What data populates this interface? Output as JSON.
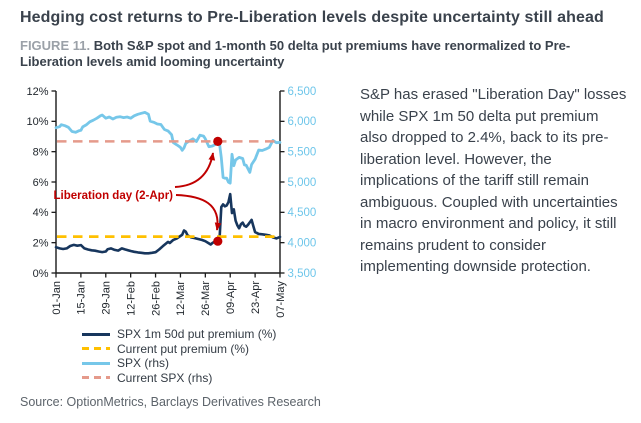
{
  "page": {
    "title": "Hedging cost returns to Pre-Liberation levels despite uncertainty still ahead",
    "figure_label": "FIGURE 11.",
    "figure_caption": "Both S&P spot and 1-month 50 delta put premiums have renormalized to Pre-Liberation levels amid looming uncertainty",
    "commentary": "S&P has erased \"Liberation Day\" losses while SPX 1m 50 delta put premium also dropped to 2.4%, back to its pre-liberation level. However, the implications of the tariff still remain ambiguous. Coupled with uncertainties in macro environment and policy, it still remains prudent to consider implementing downside protection.",
    "source": "Source: OptionMetrics, Barclays Derivatives Research"
  },
  "chart_data": {
    "type": "line",
    "title": "",
    "axis_color": "#1a1a1a",
    "tick_label_color": "#22282e",
    "x_axis": {
      "range_days": [
        0,
        126
      ],
      "tick_days": [
        0,
        14,
        28,
        42,
        56,
        70,
        84,
        98,
        112,
        126
      ],
      "tick_labels": [
        "01-Jan",
        "15-Jan",
        "29-Jan",
        "12-Feb",
        "26-Feb",
        "12-Mar",
        "26-Mar",
        "09-Apr",
        "23-Apr",
        "07-May"
      ]
    },
    "y_left": {
      "range": [
        0,
        12
      ],
      "tick_labels": [
        "0%",
        "2%",
        "4%",
        "6%",
        "8%",
        "10%",
        "12%"
      ]
    },
    "y_right": {
      "range": [
        3500,
        6500
      ],
      "tick_labels": [
        "3,500",
        "4,000",
        "4,500",
        "5,000",
        "5,500",
        "6,000",
        "6,500"
      ],
      "color": "#6ec6ea"
    },
    "series": [
      {
        "key": "premium",
        "name": "SPX 1m 50d put premium (%)",
        "axis": "left",
        "style": "solid",
        "color": "#17365d",
        "points": [
          [
            0,
            1.7
          ],
          [
            2,
            1.62
          ],
          [
            4,
            1.58
          ],
          [
            6,
            1.62
          ],
          [
            8,
            1.78
          ],
          [
            10,
            1.85
          ],
          [
            12,
            1.8
          ],
          [
            14,
            1.84
          ],
          [
            16,
            1.62
          ],
          [
            18,
            1.55
          ],
          [
            20,
            1.5
          ],
          [
            22,
            1.47
          ],
          [
            24,
            1.42
          ],
          [
            26,
            1.38
          ],
          [
            28,
            1.42
          ],
          [
            29,
            1.56
          ],
          [
            31,
            1.62
          ],
          [
            33,
            1.52
          ],
          [
            35,
            1.48
          ],
          [
            37,
            1.62
          ],
          [
            39,
            1.55
          ],
          [
            42,
            1.45
          ],
          [
            44,
            1.4
          ],
          [
            46,
            1.36
          ],
          [
            48,
            1.33
          ],
          [
            50,
            1.3
          ],
          [
            52,
            1.3
          ],
          [
            54,
            1.33
          ],
          [
            56,
            1.37
          ],
          [
            58,
            1.55
          ],
          [
            60,
            1.76
          ],
          [
            62,
            1.95
          ],
          [
            63,
            2.05
          ],
          [
            64,
            1.98
          ],
          [
            66,
            2.18
          ],
          [
            68,
            2.28
          ],
          [
            70,
            2.44
          ],
          [
            71,
            2.52
          ],
          [
            72,
            2.8
          ],
          [
            73,
            2.72
          ],
          [
            74,
            2.48
          ],
          [
            76,
            2.35
          ],
          [
            78,
            2.3
          ],
          [
            80,
            2.24
          ],
          [
            82,
            2.18
          ],
          [
            84,
            2.1
          ],
          [
            86,
            1.95
          ],
          [
            87,
            1.88
          ],
          [
            88,
            1.98
          ],
          [
            90,
            2.12
          ],
          [
            91,
            2.1
          ],
          [
            92,
            2.32
          ],
          [
            93,
            4.35
          ],
          [
            94,
            4.52
          ],
          [
            95,
            4.4
          ],
          [
            96,
            4.46
          ],
          [
            97,
            4.66
          ],
          [
            98,
            5.2
          ],
          [
            99,
            3.95
          ],
          [
            100,
            4.2
          ],
          [
            101,
            3.45
          ],
          [
            102,
            3.15
          ],
          [
            103,
            2.95
          ],
          [
            104,
            3.22
          ],
          [
            105,
            3.32
          ],
          [
            106,
            3.12
          ],
          [
            107,
            3.05
          ],
          [
            108,
            3.18
          ],
          [
            110,
            3.5
          ],
          [
            111,
            3.1
          ],
          [
            112,
            2.7
          ],
          [
            114,
            2.58
          ],
          [
            116,
            2.55
          ],
          [
            118,
            2.52
          ],
          [
            120,
            2.48
          ],
          [
            122,
            2.35
          ],
          [
            124,
            2.28
          ],
          [
            126,
            2.38
          ]
        ]
      },
      {
        "key": "current_premium",
        "name": "Current put premium (%)",
        "axis": "left",
        "style": "dashed",
        "color": "#ffc000",
        "value": 2.4
      },
      {
        "key": "spx",
        "name": "SPX (rhs)",
        "axis": "right",
        "style": "solid",
        "color": "#76c7e9",
        "points": [
          [
            0,
            5895
          ],
          [
            2,
            5912
          ],
          [
            3,
            5945
          ],
          [
            5,
            5928
          ],
          [
            7,
            5902
          ],
          [
            9,
            5832
          ],
          [
            11,
            5820
          ],
          [
            13,
            5845
          ],
          [
            14,
            5852
          ],
          [
            15,
            5908
          ],
          [
            17,
            5942
          ],
          [
            19,
            5992
          ],
          [
            21,
            6018
          ],
          [
            23,
            6052
          ],
          [
            25,
            6092
          ],
          [
            26,
            6105
          ],
          [
            28,
            6052
          ],
          [
            30,
            6072
          ],
          [
            32,
            6038
          ],
          [
            34,
            6066
          ],
          [
            36,
            6076
          ],
          [
            38,
            6062
          ],
          [
            40,
            6072
          ],
          [
            42,
            6052
          ],
          [
            44,
            6092
          ],
          [
            46,
            6116
          ],
          [
            48,
            6132
          ],
          [
            50,
            6147
          ],
          [
            52,
            6118
          ],
          [
            53,
            6002
          ],
          [
            55,
            5984
          ],
          [
            57,
            5956
          ],
          [
            59,
            5948
          ],
          [
            61,
            5866
          ],
          [
            63,
            5842
          ],
          [
            65,
            5780
          ],
          [
            66,
            5650
          ],
          [
            68,
            5612
          ],
          [
            70,
            5572
          ],
          [
            71,
            5522
          ],
          [
            72,
            5562
          ],
          [
            73,
            5638
          ],
          [
            75,
            5676
          ],
          [
            77,
            5712
          ],
          [
            79,
            5668
          ],
          [
            81,
            5772
          ],
          [
            83,
            5756
          ],
          [
            84,
            5712
          ],
          [
            86,
            5582
          ],
          [
            88,
            5594
          ],
          [
            90,
            5624
          ],
          [
            91,
            5670
          ],
          [
            92,
            5620
          ],
          [
            93,
            5400
          ],
          [
            94,
            5074
          ],
          [
            95,
            5062
          ],
          [
            96,
            5062
          ],
          [
            97,
            4998
          ],
          [
            98,
            4982
          ],
          [
            99,
            5456
          ],
          [
            100,
            5268
          ],
          [
            101,
            5362
          ],
          [
            103,
            5406
          ],
          [
            105,
            5388
          ],
          [
            106,
            5282
          ],
          [
            107,
            5276
          ],
          [
            109,
            5158
          ],
          [
            110,
            5288
          ],
          [
            112,
            5376
          ],
          [
            114,
            5528
          ],
          [
            116,
            5520
          ],
          [
            118,
            5542
          ],
          [
            120,
            5570
          ],
          [
            122,
            5686
          ],
          [
            124,
            5648
          ],
          [
            126,
            5652
          ]
        ]
      },
      {
        "key": "current_spx",
        "name": "Current SPX (rhs)",
        "axis": "right",
        "style": "dashed",
        "color": "#e59a8b",
        "value": 5670
      }
    ],
    "markers": [
      {
        "axis": "right",
        "day": 91,
        "value": 5670
      },
      {
        "axis": "left",
        "day": 91,
        "value": 2.1
      }
    ],
    "marker_color": "#c00000",
    "annotation": {
      "text": "Liberation day (2-Apr)",
      "color": "#c00000"
    },
    "legend_position": "bottom-left",
    "grid": false
  }
}
